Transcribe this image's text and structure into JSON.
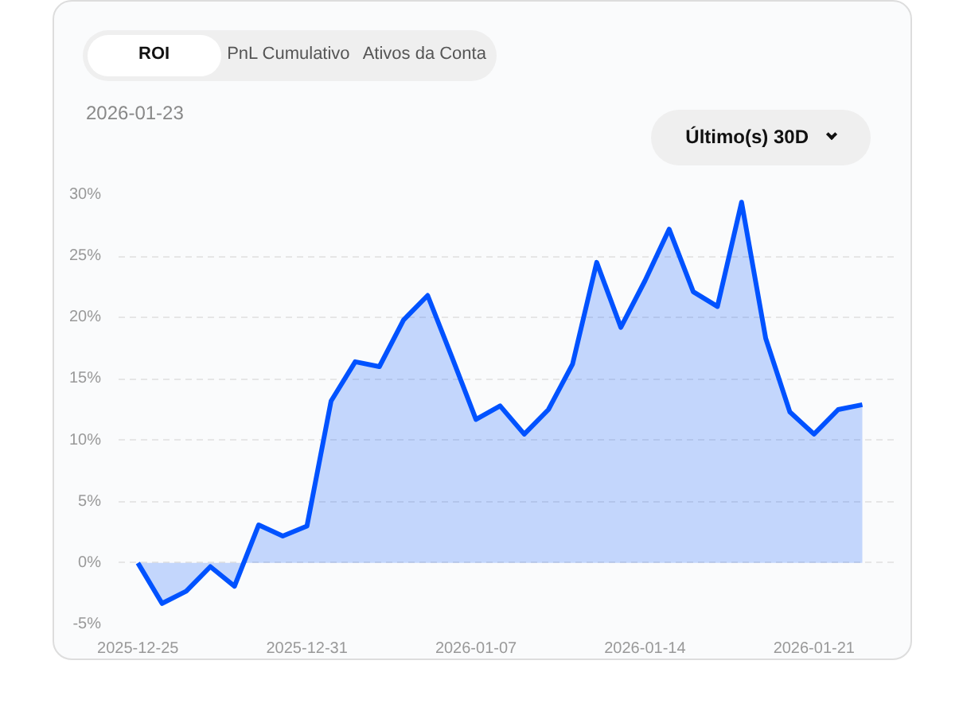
{
  "chart_data": {
    "type": "area",
    "title": "ROI",
    "subtitle": "2026-01-23",
    "annotations": [
      "PnL Cumulativo",
      "Ativos da Conta",
      "Último(s) 30D"
    ],
    "categories": [
      "2025-12-25",
      null,
      null,
      null,
      null,
      null,
      null,
      "2025-12-31",
      null,
      null,
      null,
      null,
      null,
      null,
      "2026-01-07",
      null,
      null,
      null,
      null,
      null,
      null,
      "2026-01-14",
      null,
      null,
      null,
      null,
      null,
      null,
      "2026-01-21",
      null,
      null
    ],
    "series": [
      {
        "color": "#0052ff",
        "values": [
          0,
          -3.3,
          -2.3,
          -0.3,
          -1.9,
          3.1,
          2.2,
          3.0,
          13.2,
          16.4,
          16.0,
          19.8,
          21.8,
          16.8,
          11.7,
          12.8,
          10.5,
          12.5,
          16.2,
          24.5,
          19.2,
          23.0,
          27.2,
          22.1,
          20.9,
          29.4,
          18.3,
          12.3,
          10.5,
          12.5,
          12.9
        ]
      }
    ],
    "ylim": [
      -5,
      30
    ],
    "yticks": [
      {
        "value": -5,
        "label": "-5%"
      },
      {
        "value": 0,
        "label": "0%"
      },
      {
        "value": 5,
        "label": "5%"
      },
      {
        "value": 10,
        "label": "10%"
      },
      {
        "value": 15,
        "label": "15%"
      },
      {
        "value": 20,
        "label": "20%"
      },
      {
        "value": 25,
        "label": "25%"
      },
      {
        "value": 30,
        "label": "30%"
      }
    ],
    "grid": "y",
    "line_style": "solid"
  }
}
